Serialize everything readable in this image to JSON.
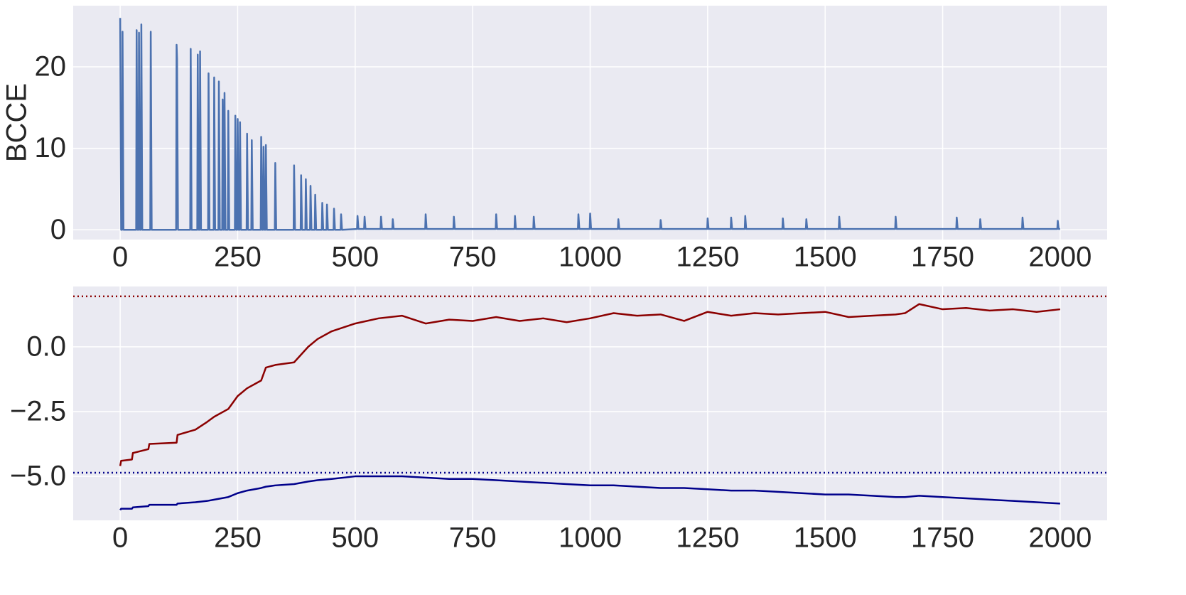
{
  "chart_data": [
    {
      "type": "line",
      "ylabel": "BCCE",
      "grid": true,
      "x": [
        0,
        2,
        4,
        5,
        7,
        34,
        35,
        37,
        39,
        40,
        42,
        44,
        45,
        47,
        64,
        65,
        67,
        119,
        120,
        121,
        123,
        149,
        150,
        152,
        164,
        165,
        167,
        169,
        170,
        172,
        187,
        188,
        190,
        199,
        200,
        202,
        209,
        210,
        212,
        217,
        218,
        220,
        221,
        222,
        224,
        229,
        230,
        232,
        244,
        245,
        247,
        249,
        250,
        252,
        254,
        255,
        257,
        269,
        270,
        272,
        279,
        280,
        282,
        299,
        300,
        302,
        304,
        305,
        307,
        309,
        310,
        312,
        329,
        330,
        332,
        369,
        370,
        372,
        384,
        385,
        387,
        394,
        395,
        397,
        404,
        405,
        407,
        414,
        415,
        417,
        429,
        430,
        432,
        439,
        440,
        442,
        454,
        455,
        457,
        469,
        470,
        472,
        504,
        505,
        507,
        519,
        520,
        522,
        554,
        555,
        557,
        579,
        580,
        582,
        649,
        650,
        652,
        709,
        710,
        712,
        799,
        800,
        802,
        839,
        840,
        842,
        879,
        880,
        882,
        974,
        975,
        977,
        999,
        1000,
        1002,
        1059,
        1060,
        1062,
        1149,
        1150,
        1152,
        1249,
        1250,
        1252,
        1299,
        1300,
        1302,
        1329,
        1330,
        1332,
        1409,
        1410,
        1412,
        1459,
        1460,
        1462,
        1529,
        1530,
        1532,
        1649,
        1650,
        1652,
        1779,
        1780,
        1782,
        1829,
        1830,
        1832,
        1919,
        1920,
        1922,
        1994,
        1995,
        1997,
        2000
      ],
      "series": [
        {
          "color": "#4c72b0",
          "values": [
            26,
            0,
            0,
            24.3,
            0,
            0,
            24.5,
            0,
            0,
            24.2,
            0,
            0,
            25.2,
            0,
            0,
            24.3,
            0,
            0,
            22.7,
            21,
            0,
            0,
            22.2,
            0,
            0,
            21.5,
            0,
            0,
            21.9,
            0,
            0,
            19.2,
            0,
            0,
            18.7,
            0,
            0,
            18.2,
            0,
            0,
            16,
            0,
            0,
            16.8,
            0,
            0,
            14.6,
            0,
            0,
            14,
            0,
            0,
            13.6,
            0,
            0,
            13.2,
            0,
            0,
            11.8,
            0,
            0,
            11,
            0,
            0,
            11.4,
            0,
            0,
            10.2,
            0,
            0,
            10.4,
            0,
            0,
            8.2,
            0,
            0,
            7.9,
            0,
            0,
            6.7,
            0,
            0,
            6.2,
            0,
            0,
            5.4,
            0,
            0,
            4.3,
            0,
            0,
            3.3,
            0,
            0,
            3.1,
            0,
            0,
            2.6,
            0,
            0,
            1.9,
            0,
            0.1,
            1.7,
            0.1,
            0.1,
            1.6,
            0.1,
            0.1,
            1.6,
            0.1,
            0.1,
            1.3,
            0.1,
            0.1,
            1.9,
            0.1,
            0.1,
            1.6,
            0.1,
            0.1,
            1.9,
            0.1,
            0.1,
            1.7,
            0.1,
            0.1,
            1.6,
            0.1,
            0.1,
            1.9,
            0.1,
            0.1,
            2,
            0.1,
            0.1,
            1.3,
            0.1,
            0.1,
            1.2,
            0.1,
            0.1,
            1.4,
            0.1,
            0.1,
            1.5,
            0.1,
            0.1,
            1.7,
            0.1,
            0.1,
            1.4,
            0.1,
            0.1,
            1.3,
            0.1,
            0.1,
            1.6,
            0.1,
            0.1,
            1.6,
            0.1,
            0.1,
            1.5,
            0.1,
            0.1,
            1.3,
            0.1,
            0.1,
            1.5,
            0.1,
            0.1,
            1.1,
            0.1,
            0.1
          ]
        }
      ],
      "xlim": [
        -100,
        2100
      ],
      "xticks": [
        0,
        250,
        500,
        750,
        1000,
        1250,
        1500,
        1750,
        2000
      ],
      "ylim": [
        -1.2,
        27.5
      ],
      "yticks": [
        0,
        10,
        20
      ]
    },
    {
      "type": "line",
      "grid": true,
      "x": [
        0,
        2,
        25,
        27,
        60,
        62,
        120,
        122,
        160,
        185,
        200,
        230,
        250,
        270,
        300,
        310,
        330,
        370,
        400,
        420,
        450,
        500,
        550,
        600,
        650,
        700,
        750,
        800,
        850,
        900,
        950,
        1000,
        1050,
        1100,
        1150,
        1200,
        1250,
        1300,
        1350,
        1400,
        1450,
        1500,
        1550,
        1600,
        1650,
        1670,
        1700,
        1750,
        1800,
        1850,
        1900,
        1950,
        2000
      ],
      "series": [
        {
          "color": "#8b0000",
          "values": [
            -4.6,
            -4.4,
            -4.35,
            -4.1,
            -3.95,
            -3.75,
            -3.7,
            -3.4,
            -3.2,
            -2.9,
            -2.7,
            -2.4,
            -1.9,
            -1.6,
            -1.3,
            -0.8,
            -0.7,
            -0.6,
            0.0,
            0.3,
            0.6,
            0.9,
            1.1,
            1.2,
            0.9,
            1.05,
            1.0,
            1.15,
            1.0,
            1.1,
            0.95,
            1.1,
            1.3,
            1.2,
            1.25,
            1.0,
            1.35,
            1.2,
            1.3,
            1.25,
            1.3,
            1.35,
            1.15,
            1.2,
            1.25,
            1.3,
            1.65,
            1.45,
            1.5,
            1.4,
            1.45,
            1.35,
            1.45
          ]
        },
        {
          "color": "#00008b",
          "values": [
            -6.3,
            -6.25,
            -6.25,
            -6.2,
            -6.15,
            -6.1,
            -6.1,
            -6.05,
            -6.0,
            -5.95,
            -5.9,
            -5.8,
            -5.65,
            -5.55,
            -5.45,
            -5.4,
            -5.35,
            -5.3,
            -5.2,
            -5.15,
            -5.1,
            -5.0,
            -5.0,
            -5.0,
            -5.05,
            -5.1,
            -5.1,
            -5.15,
            -5.2,
            -5.25,
            -5.3,
            -5.35,
            -5.35,
            -5.4,
            -5.45,
            -5.45,
            -5.5,
            -5.55,
            -5.55,
            -5.6,
            -5.65,
            -5.7,
            -5.7,
            -5.75,
            -5.8,
            -5.8,
            -5.75,
            -5.8,
            -5.85,
            -5.9,
            -5.95,
            -6.0,
            -6.05
          ]
        }
      ],
      "hlines": [
        {
          "value": 1.95,
          "color": "#8b0000"
        },
        {
          "value": -4.86,
          "color": "#00008b"
        }
      ],
      "hline_style": "dotted",
      "xlim": [
        -100,
        2100
      ],
      "xticks": [
        0,
        250,
        500,
        750,
        1000,
        1250,
        1500,
        1750,
        2000
      ],
      "ylim": [
        -6.7,
        2.33
      ],
      "yticks": [
        {
          "value": -5,
          "label": "−5.0"
        },
        {
          "value": -2.5,
          "label": "−2.5"
        },
        {
          "value": 0,
          "label": "0.0"
        }
      ]
    }
  ]
}
